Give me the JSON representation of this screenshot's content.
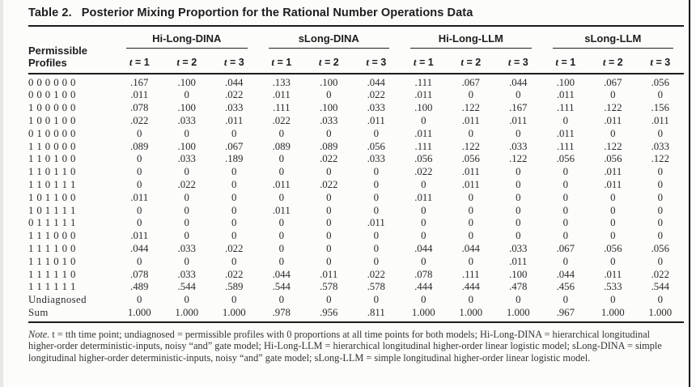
{
  "title": {
    "label": "Table 2.",
    "text": "Posterior Mixing Proportion for the Rational Number Operations Data"
  },
  "table": {
    "row_header": {
      "line1": "Permissible",
      "line2": "Profiles"
    },
    "groups": [
      {
        "label": "Hi-Long-DINA"
      },
      {
        "label": "sLong-DINA"
      },
      {
        "label": "Hi-Long-LLM"
      },
      {
        "label": "sLong-LLM"
      }
    ],
    "time_headers": [
      {
        "symbol": "t",
        "rest": " = 1"
      },
      {
        "symbol": "t",
        "rest": " = 2"
      },
      {
        "symbol": "t",
        "rest": " = 3"
      }
    ],
    "rows": [
      {
        "profile": "0 0 0 0 0 0",
        "values": [
          ".167",
          ".100",
          ".044",
          ".133",
          ".100",
          ".044",
          ".111",
          ".067",
          ".044",
          ".100",
          ".067",
          ".056"
        ]
      },
      {
        "profile": "0 0 0 1 0 0",
        "values": [
          ".011",
          "0",
          ".022",
          ".011",
          "0",
          ".022",
          ".011",
          "0",
          "0",
          ".011",
          "0",
          "0"
        ]
      },
      {
        "profile": "1 0 0 0 0 0",
        "values": [
          ".078",
          ".100",
          ".033",
          ".111",
          ".100",
          ".033",
          ".100",
          ".122",
          ".167",
          ".111",
          ".122",
          ".156"
        ]
      },
      {
        "profile": "1 0 0 1 0 0",
        "values": [
          ".022",
          ".033",
          ".011",
          ".022",
          ".033",
          ".011",
          "0",
          ".011",
          ".011",
          "0",
          ".011",
          ".011"
        ]
      },
      {
        "profile": "0 1 0 0 0 0",
        "values": [
          "0",
          "0",
          "0",
          "0",
          "0",
          "0",
          ".011",
          "0",
          "0",
          ".011",
          "0",
          "0"
        ]
      },
      {
        "profile": "1 1 0 0 0 0",
        "values": [
          ".089",
          ".100",
          ".067",
          ".089",
          ".089",
          ".056",
          ".111",
          ".122",
          ".033",
          ".111",
          ".122",
          ".033"
        ]
      },
      {
        "profile": "1 1 0 1 0 0",
        "values": [
          "0",
          ".033",
          ".189",
          "0",
          ".022",
          ".033",
          ".056",
          ".056",
          ".122",
          ".056",
          ".056",
          ".122"
        ]
      },
      {
        "profile": "1 1 0 1 1 0",
        "values": [
          "0",
          "0",
          "0",
          "0",
          "0",
          "0",
          ".022",
          ".011",
          "0",
          "0",
          ".011",
          "0"
        ]
      },
      {
        "profile": "1 1 0 1 1 1",
        "values": [
          "0",
          ".022",
          "0",
          ".011",
          ".022",
          "0",
          "0",
          ".011",
          "0",
          "0",
          ".011",
          "0"
        ]
      },
      {
        "profile": "1 0 1 1 0 0",
        "values": [
          ".011",
          "0",
          "0",
          "0",
          "0",
          "0",
          ".011",
          "0",
          "0",
          "0",
          "0",
          "0"
        ]
      },
      {
        "profile": "1 0 1 1 1 1",
        "values": [
          "0",
          "0",
          "0",
          ".011",
          "0",
          "0",
          "0",
          "0",
          "0",
          "0",
          "0",
          "0"
        ]
      },
      {
        "profile": "0 1 1 1 1 1",
        "values": [
          "0",
          "0",
          "0",
          "0",
          "0",
          ".011",
          "0",
          "0",
          "0",
          "0",
          "0",
          "0"
        ]
      },
      {
        "profile": "1 1 1 0 0 0",
        "values": [
          ".011",
          "0",
          "0",
          "0",
          "0",
          "0",
          "0",
          "0",
          "0",
          "0",
          "0",
          "0"
        ]
      },
      {
        "profile": "1 1 1 1 0 0",
        "values": [
          ".044",
          ".033",
          ".022",
          "0",
          "0",
          "0",
          ".044",
          ".044",
          ".033",
          ".067",
          ".056",
          ".056"
        ]
      },
      {
        "profile": "1 1 1 0 1 0",
        "values": [
          "0",
          "0",
          "0",
          "0",
          "0",
          "0",
          "0",
          "0",
          ".011",
          "0",
          "0",
          "0"
        ]
      },
      {
        "profile": "1 1 1 1 1 0",
        "values": [
          ".078",
          ".033",
          ".022",
          ".044",
          ".011",
          ".022",
          ".078",
          ".111",
          ".100",
          ".044",
          ".011",
          ".022"
        ]
      },
      {
        "profile": "1 1 1 1 1 1",
        "values": [
          ".489",
          ".544",
          ".589",
          ".544",
          ".578",
          ".578",
          ".444",
          ".444",
          ".478",
          ".456",
          ".533",
          ".544"
        ]
      },
      {
        "profile": "Undiagnosed",
        "values": [
          "0",
          "0",
          "0",
          "0",
          "0",
          "0",
          "0",
          "0",
          "0",
          "0",
          "0",
          "0"
        ]
      },
      {
        "profile": "Sum",
        "values": [
          "1.000",
          "1.000",
          "1.000",
          ".978",
          ".956",
          ".811",
          "1.000",
          "1.000",
          "1.000",
          ".967",
          "1.000",
          "1.000"
        ]
      }
    ]
  },
  "note": {
    "prefix": "Note.",
    "body": " t = tth time point; undiagnosed = permissible profiles with 0 proportions at all time points for both models; Hi-Long-DINA = hierarchical longitudinal higher-order deterministic-inputs, noisy “and” gate model; Hi-Long-LLM = hierarchical longitudinal higher-order linear logistic model; sLong-DINA = simple longitudinal higher-order deterministic-inputs, noisy “and” gate model; sLong-LLM = simple longitudinal higher-order linear logistic model."
  }
}
